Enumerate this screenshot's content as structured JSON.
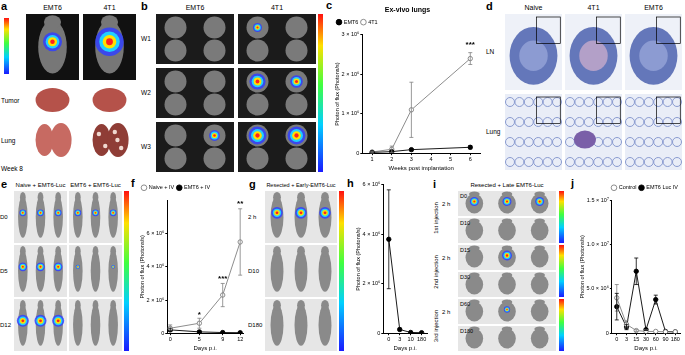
{
  "figure": {
    "panels": [
      {
        "letter": "a",
        "columns": [
          "EMT6",
          "4T1"
        ],
        "rows": [
          "Tumor",
          "Lung"
        ],
        "footer": "Week 8"
      },
      {
        "letter": "b",
        "columns": [
          "EMT6",
          "4T1"
        ],
        "rows": [
          "W1",
          "W2",
          "W3"
        ]
      },
      {
        "letter": "c"
      },
      {
        "letter": "d",
        "columns": [
          "Naive",
          "4T1",
          "EMT6"
        ],
        "rows": [
          "LN",
          "Lung"
        ]
      },
      {
        "letter": "e",
        "columns": [
          "Naive + EMT6-Luc",
          "EMT6 + EMT6-Luc"
        ],
        "rows": [
          "D0",
          "D5",
          "D12"
        ]
      },
      {
        "letter": "f"
      },
      {
        "letter": "g",
        "columns": [
          "Resected + Early-EMT6-Luc"
        ],
        "rows": [
          "2 h",
          "D10",
          "D180"
        ]
      },
      {
        "letter": "h"
      },
      {
        "letter": "i",
        "columns": [
          "Resected + Late EMT6-Luc"
        ],
        "groups": [
          {
            "injection": "1st injection",
            "time": "2 h",
            "days": [
              "D0",
              "D10"
            ]
          },
          {
            "injection": "2nd injection",
            "time": "2 h",
            "days": [
              "D15",
              "D30"
            ]
          },
          {
            "injection": "3rd injection",
            "time": "2 h",
            "days": [
              "D60",
              "D180"
            ]
          }
        ]
      },
      {
        "letter": "j"
      }
    ]
  },
  "chart_data": [
    {
      "type": "line",
      "title": "Ex-vivo lungs",
      "x_label": "Weeks post implantation",
      "y_label": "Photon of flux (Photons/s)",
      "x": [
        1,
        2,
        3,
        6
      ],
      "series": [
        {
          "name": "EMT6",
          "color": "#000000",
          "marker": "circle",
          "values": [
            20000,
            40000,
            90000,
            150000
          ],
          "errors": [
            10000,
            20000,
            30000,
            40000
          ]
        },
        {
          "name": "4T1",
          "color": "#808080",
          "marker": "open_circle",
          "values": [
            30000,
            100000,
            1100000,
            2400000
          ],
          "errors": [
            20000,
            80000,
            700000,
            150000
          ]
        }
      ],
      "xlim": [
        0.5,
        6.5
      ],
      "xticks": [
        1,
        2,
        3,
        4,
        5,
        6
      ],
      "ylim": [
        0,
        3000000
      ],
      "yticks": [
        0,
        {
          "value": 1000000,
          "label": "1 × 10⁶"
        },
        {
          "value": 2000000,
          "label": "2 × 10⁶"
        },
        {
          "value": 3000000,
          "label": "3 × 10⁶"
        }
      ],
      "legend": "top-left",
      "grid": false,
      "annotations": [
        {
          "x": 6,
          "y": 2750000,
          "text": "***"
        }
      ]
    },
    {
      "type": "line",
      "x_label": "Days p.i.",
      "y_label": "Photon of flux (Photons/s)",
      "x": [
        0,
        5,
        9,
        12
      ],
      "series": [
        {
          "name": "Naive + IV",
          "color": "#808080",
          "marker": "open_circle",
          "values": [
            300000,
            600000,
            2300000,
            5500000
          ],
          "errors": [
            200000,
            300000,
            700000,
            2000000
          ]
        },
        {
          "name": "EMT6 + IV",
          "color": "#000000",
          "marker": "circle",
          "values": [
            200000,
            80000,
            40000,
            30000
          ],
          "errors": [
            100000,
            50000,
            20000,
            20000
          ]
        }
      ],
      "xlim": [
        -0.5,
        12.5
      ],
      "xticks": [
        0,
        5,
        9,
        12
      ],
      "ylim": [
        0,
        8000000
      ],
      "yticks": [
        0,
        {
          "value": 2000000,
          "label": "2 × 10⁶"
        },
        {
          "value": 4000000,
          "label": "4 × 10⁶"
        },
        {
          "value": 6000000,
          "label": "6 × 10⁶"
        }
      ],
      "legend": "top-left",
      "grid": false,
      "annotations": [
        {
          "x": 5,
          "y": 1100000,
          "text": "*"
        },
        {
          "x": 9,
          "y": 3300000,
          "text": "***"
        },
        {
          "x": 12,
          "y": 7800000,
          "text": "**"
        }
      ]
    },
    {
      "type": "line",
      "x_label": "Days p.i.",
      "y_label": "Photon of flux (Photons/s)",
      "categories": [
        "0",
        "3",
        "10",
        "180"
      ],
      "values": [
        3800000,
        150000,
        30000,
        20000
      ],
      "errors": [
        2000000,
        50000,
        null,
        null
      ],
      "color": "#000000",
      "marker": "circle",
      "ylim": [
        0,
        6000000
      ],
      "yticks": [
        0,
        {
          "value": 2000000,
          "label": "2 × 10⁶"
        },
        {
          "value": 4000000,
          "label": "4 × 10⁶"
        },
        {
          "value": 6000000,
          "label": "6 × 10⁶"
        }
      ],
      "grid": false
    },
    {
      "type": "line",
      "x_label": "Days p.i.",
      "y_label": "Photon of flux (Photons/s)",
      "categories": [
        "0",
        "3",
        "15",
        "30",
        "60",
        "90",
        "180"
      ],
      "series": [
        {
          "name": "Control",
          "color": "#808080",
          "marker": "open_circle",
          "values": [
            4000000,
            1000000,
            300000,
            200000,
            200000,
            150000,
            150000
          ],
          "errors": [
            1500000,
            400000,
            100000,
            null,
            null,
            null,
            null
          ]
        },
        {
          "name": "EMT6 Luc IV",
          "color": "#000000",
          "marker": "circle",
          "values": [
            3000000,
            700000,
            7000000,
            400000,
            3800000,
            200000,
            150000
          ],
          "errors": [
            1500000,
            300000,
            1500000,
            100000,
            500000,
            null,
            null
          ]
        }
      ],
      "ylim": [
        0,
        15000000
      ],
      "yticks": [
        0,
        {
          "value": 5000000,
          "label": "5.0 × 10⁶"
        },
        {
          "value": 10000000,
          "label": "1.0 × 10⁷"
        },
        {
          "value": 15000000,
          "label": "1.5 × 10⁷"
        }
      ],
      "legend": "top-right",
      "grid": false
    }
  ]
}
